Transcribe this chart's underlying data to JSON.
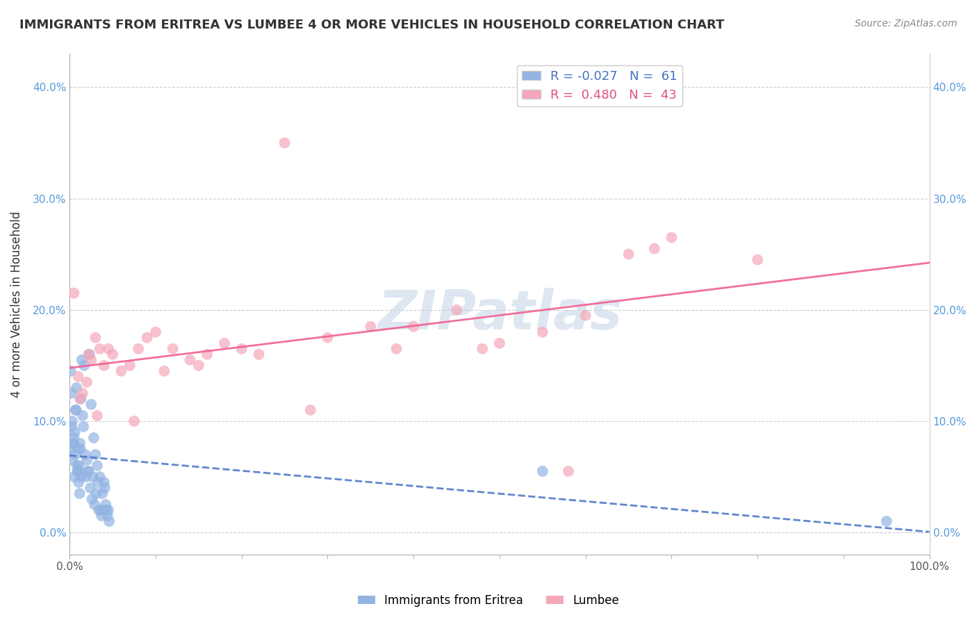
{
  "title": "IMMIGRANTS FROM ERITREA VS LUMBEE 4 OR MORE VEHICLES IN HOUSEHOLD CORRELATION CHART",
  "source": "Source: ZipAtlas.com",
  "ylabel": "4 or more Vehicles in Household",
  "legend_eritrea_r": "-0.027",
  "legend_eritrea_n": "61",
  "legend_lumbee_r": "0.480",
  "legend_lumbee_n": "43",
  "eritrea_color": "#92b4e3",
  "lumbee_color": "#f4a7b9",
  "eritrea_line_color": "#4472c4",
  "lumbee_line_color": "#f06090",
  "background_color": "#ffffff",
  "watermark_color": "#c8d8e8",
  "eritrea_x": [
    0.1,
    0.15,
    0.2,
    0.25,
    0.3,
    0.35,
    0.4,
    0.45,
    0.5,
    0.55,
    0.6,
    0.65,
    0.7,
    0.75,
    0.8,
    0.85,
    0.9,
    0.95,
    1.0,
    1.05,
    1.1,
    1.15,
    1.2,
    1.25,
    1.3,
    1.35,
    1.4,
    1.5,
    1.6,
    1.7,
    1.8,
    1.9,
    2.0,
    2.1,
    2.2,
    2.3,
    2.4,
    2.5,
    2.6,
    2.7,
    2.8,
    2.9,
    3.0,
    3.1,
    3.2,
    3.3,
    3.4,
    3.5,
    3.6,
    3.7,
    3.8,
    3.9,
    4.0,
    4.1,
    4.2,
    4.3,
    4.4,
    4.5,
    4.6,
    55.0,
    95.0
  ],
  "eritrea_y": [
    14.5,
    7.5,
    12.5,
    9.5,
    10.0,
    6.5,
    8.0,
    8.0,
    8.5,
    5.0,
    9.0,
    7.0,
    11.0,
    11.0,
    13.0,
    6.0,
    5.5,
    5.5,
    7.5,
    4.5,
    6.0,
    3.5,
    8.0,
    7.5,
    12.0,
    5.0,
    15.5,
    10.5,
    9.5,
    15.0,
    7.0,
    5.0,
    6.5,
    5.5,
    5.5,
    16.0,
    4.0,
    11.5,
    3.0,
    5.0,
    8.5,
    2.5,
    7.0,
    3.5,
    6.0,
    4.5,
    2.0,
    5.0,
    2.0,
    1.5,
    3.5,
    2.0,
    4.5,
    4.0,
    2.5,
    2.0,
    1.5,
    2.0,
    1.0,
    5.5,
    1.0
  ],
  "lumbee_x": [
    0.5,
    1.0,
    1.5,
    2.0,
    2.5,
    3.0,
    3.5,
    4.0,
    5.0,
    6.0,
    7.0,
    8.0,
    9.0,
    10.0,
    12.0,
    14.0,
    16.0,
    18.0,
    20.0,
    22.0,
    25.0,
    28.0,
    30.0,
    35.0,
    38.0,
    40.0,
    45.0,
    48.0,
    50.0,
    55.0,
    58.0,
    60.0,
    65.0,
    68.0,
    70.0,
    80.0,
    1.2,
    2.2,
    3.2,
    4.5,
    7.5,
    11.0,
    15.0
  ],
  "lumbee_y": [
    21.5,
    14.0,
    12.5,
    13.5,
    15.5,
    17.5,
    16.5,
    15.0,
    16.0,
    14.5,
    15.0,
    16.5,
    17.5,
    18.0,
    16.5,
    15.5,
    16.0,
    17.0,
    16.5,
    16.0,
    35.0,
    11.0,
    17.5,
    18.5,
    16.5,
    18.5,
    20.0,
    16.5,
    17.0,
    18.0,
    5.5,
    19.5,
    25.0,
    25.5,
    26.5,
    24.5,
    12.0,
    16.0,
    10.5,
    16.5,
    10.0,
    14.5,
    15.0
  ]
}
